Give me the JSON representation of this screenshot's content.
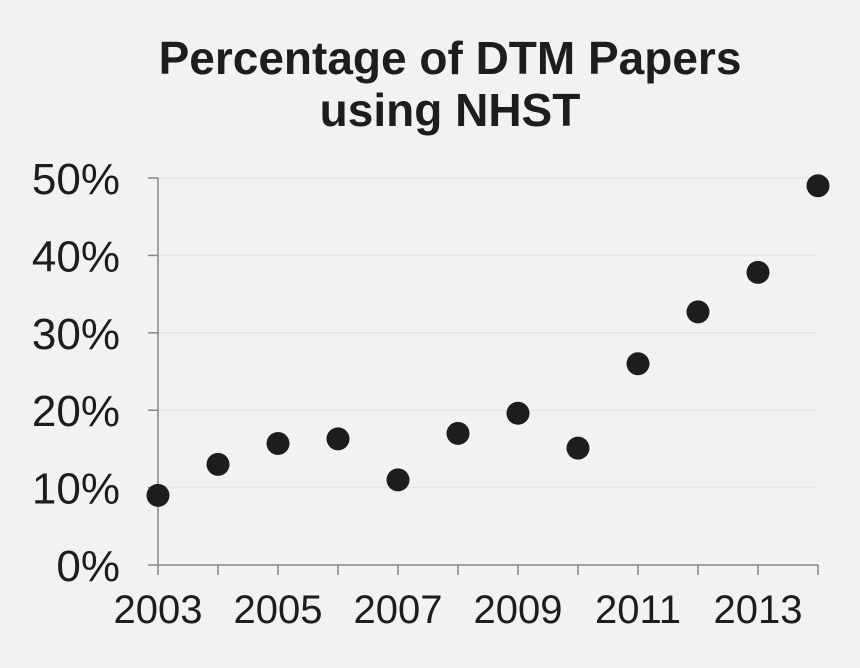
{
  "chart_data": {
    "type": "scatter",
    "title_lines": [
      "Percentage of DTM Papers",
      "using NHST"
    ],
    "xlabel": "",
    "ylabel": "",
    "x": [
      2003,
      2004,
      2005,
      2006,
      2007,
      2008,
      2009,
      2010,
      2011,
      2012,
      2013,
      2014
    ],
    "y": [
      9,
      13,
      15.7,
      16.3,
      11,
      17,
      19.6,
      15.1,
      26,
      32.7,
      37.8,
      49
    ],
    "xlim": [
      2003,
      2014
    ],
    "ylim": [
      0,
      50
    ],
    "x_tick_labels": [
      "2003",
      "2005",
      "2007",
      "2009",
      "2011",
      "2013"
    ],
    "x_tick_values": [
      2003,
      2005,
      2007,
      2009,
      2011,
      2013
    ],
    "y_tick_labels": [
      "0%",
      "10%",
      "20%",
      "30%",
      "40%",
      "50%"
    ],
    "y_tick_values": [
      0,
      10,
      20,
      30,
      40,
      50
    ],
    "grid": true,
    "legend": "none",
    "marker_color": "#1e1c1c",
    "axis_color": "#888888",
    "grid_color": "#e6e6e6"
  }
}
